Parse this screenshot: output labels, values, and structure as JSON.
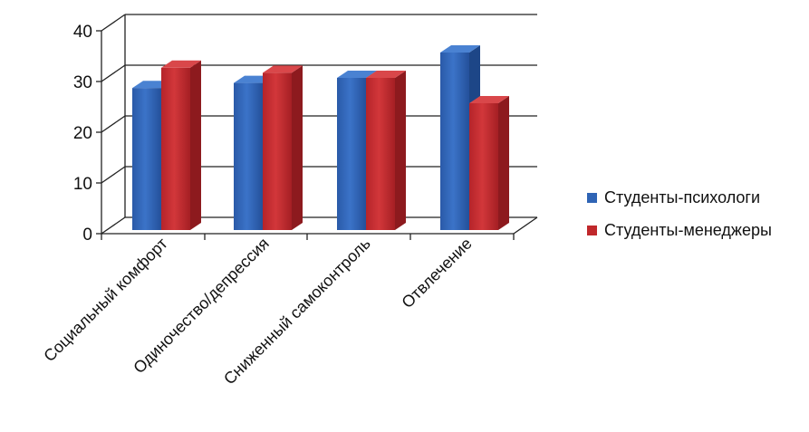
{
  "chart_data": {
    "type": "bar",
    "categories": [
      "Социальный комфорт",
      "Одиночество/депрессия",
      "Сниженный самоконтроль",
      "Отвлечение"
    ],
    "series": [
      {
        "name": "Студенты-психологи",
        "values": [
          28,
          29,
          30,
          35
        ],
        "color": "#2f64b5"
      },
      {
        "name": "Студенты-менеджеры",
        "values": [
          32,
          31,
          30,
          25
        ],
        "color": "#c0282b"
      }
    ],
    "yticks": [
      "0",
      "10",
      "20",
      "30",
      "40"
    ],
    "ylim": [
      0,
      40
    ],
    "grid": true,
    "legend_position": "right",
    "three_d": true
  }
}
